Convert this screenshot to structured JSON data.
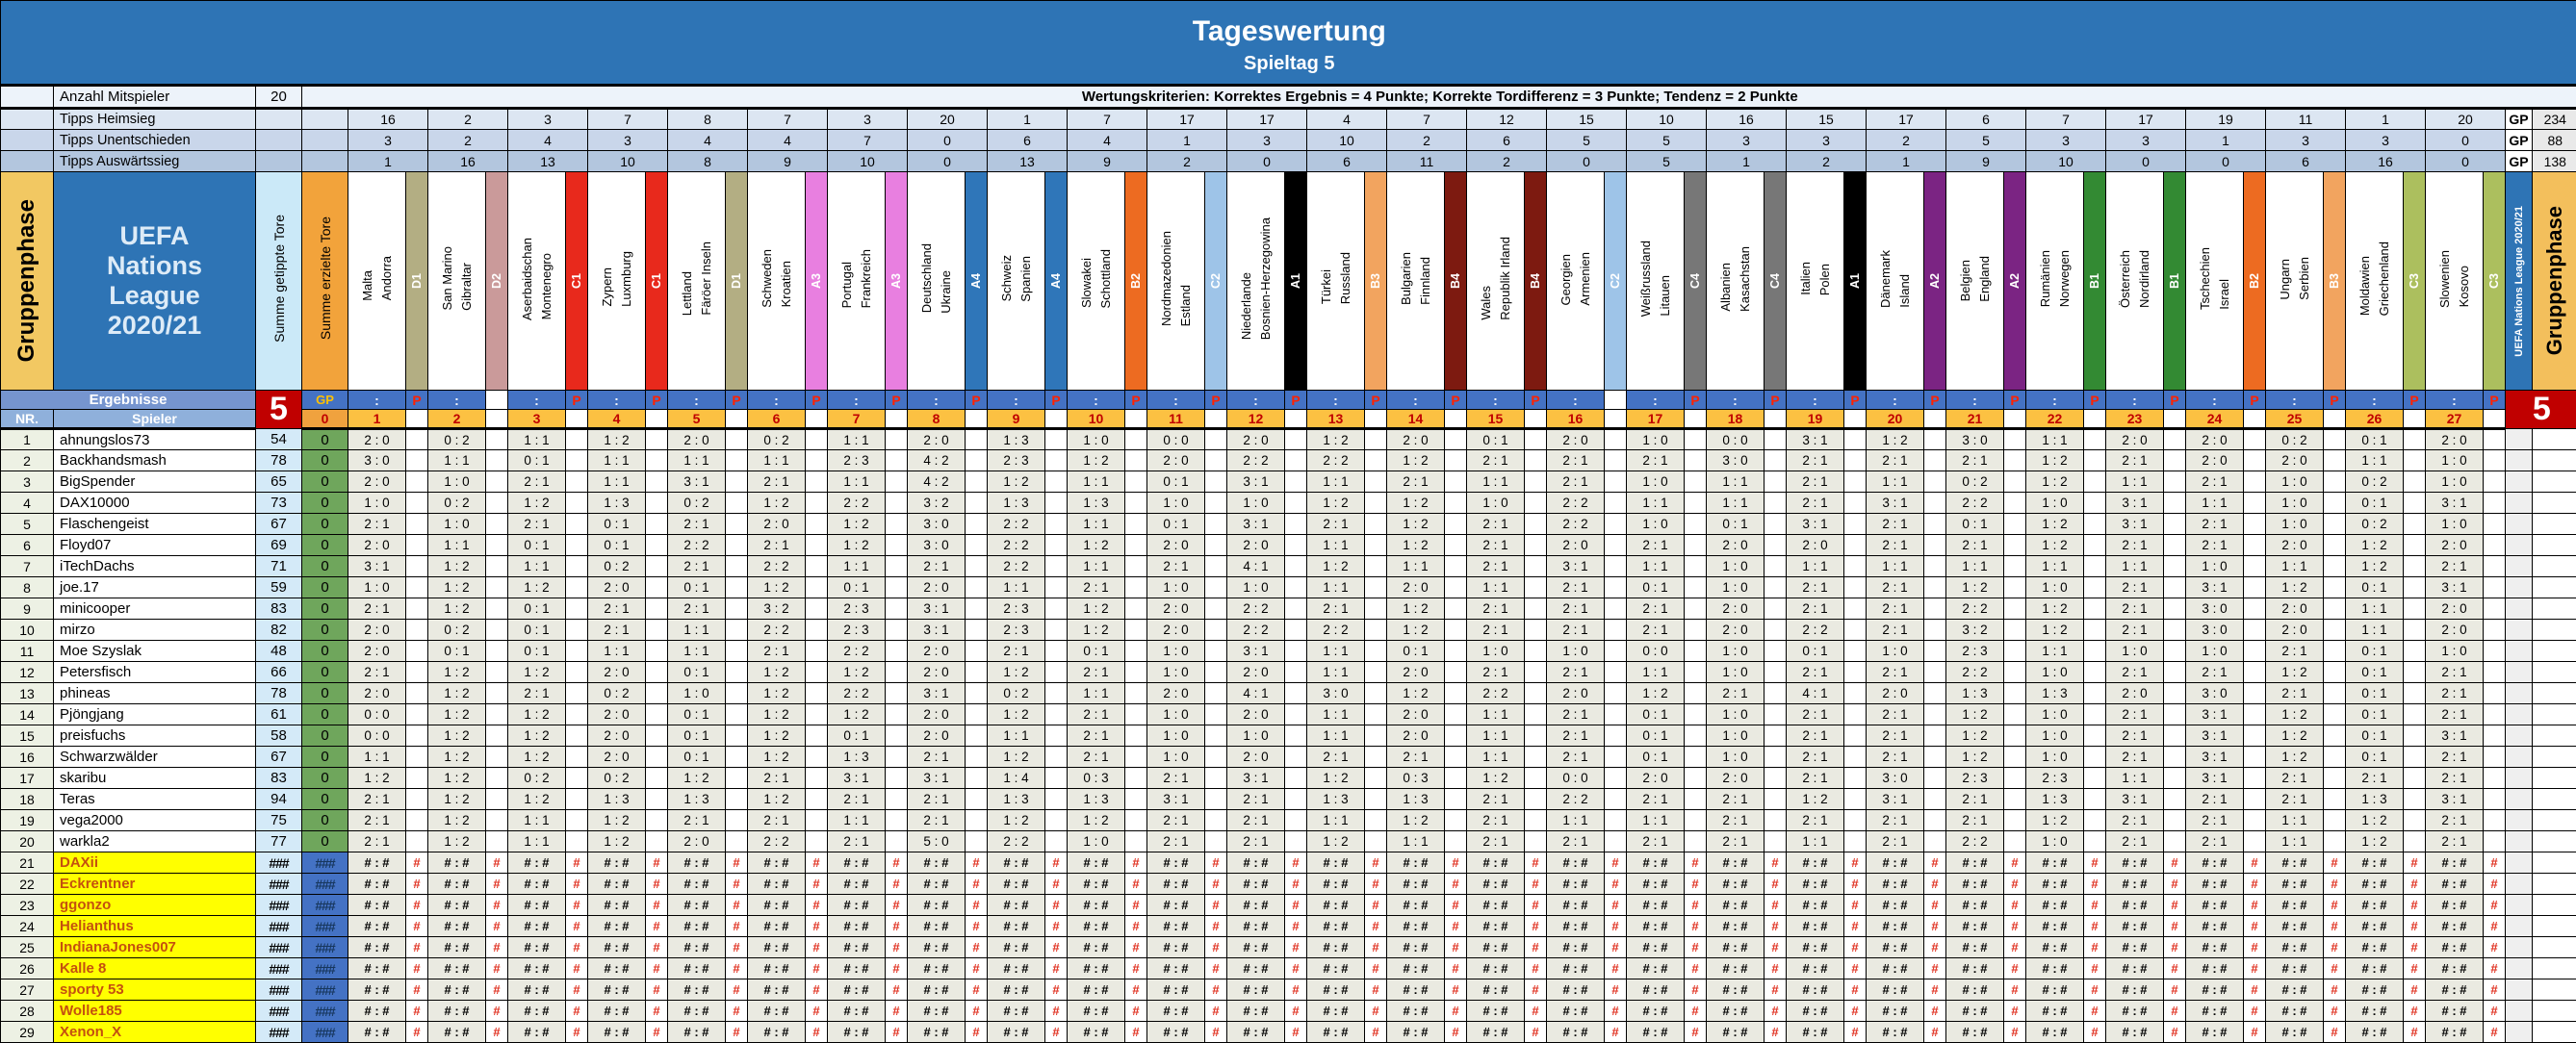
{
  "banner": {
    "title": "Tageswertung",
    "subtitle": "Spieltag 5"
  },
  "info": {
    "anzahl_label": "Anzahl Mitspieler",
    "anzahl_value": "20",
    "kriterien": "Wertungskriterien: Korrektes Ergebnis = 4 Punkte; Korrekte Tordifferenz = 3 Punkte; Tendenz = 2 Punkte"
  },
  "labels": {
    "gruppenphase_left": "Gruppenphase",
    "uefa_box_lines": [
      "UEFA",
      "Nations",
      "League",
      "2020/21"
    ],
    "summe_getippte": "Summe getippte Tore",
    "summe_erzielte": "Summe erzielte Tore",
    "uefa_column": "UEFA Nations League 2020/21",
    "gruppenphase_right": "Gruppenphase",
    "ergebnisse": "Ergebnisse",
    "spieler": "Spieler",
    "nr": "NR.",
    "gp": "GP",
    "spieltag_number": "5",
    "zero": "0",
    "colon": ":",
    "p": "P"
  },
  "group_colors": {
    "D1": "#B3AE83",
    "D2": "#CA9A9A",
    "C1": "#E8291C",
    "A3": "#E87FE0",
    "A4": "#2F76B9",
    "B2": "#ED6B21",
    "C2": "#9EC4E8",
    "A1": "#000000",
    "B3": "#F2A45F",
    "B4": "#7D1A10",
    "C4": "#777777",
    "A2": "#7B2483",
    "B1": "#338A33",
    "C3": "#ACBF5E"
  },
  "matches": [
    {
      "nr": 1,
      "home": "Malta",
      "away": "Andorra",
      "group": "D1",
      "p": true
    },
    {
      "nr": 2,
      "home": "San Marino",
      "away": "Gibraltar",
      "group": "D2",
      "p": false
    },
    {
      "nr": 3,
      "home": "Aserbaidschan",
      "away": "Montenegro",
      "group": "C1",
      "p": true
    },
    {
      "nr": 4,
      "home": "Zypern",
      "away": "Luxmburg",
      "group": "C1",
      "p": true
    },
    {
      "nr": 5,
      "home": "Lettland",
      "away": "Färöer Inseln",
      "group": "D1",
      "p": true
    },
    {
      "nr": 6,
      "home": "Schweden",
      "away": "Kroatien",
      "group": "A3",
      "p": true
    },
    {
      "nr": 7,
      "home": "Portugal",
      "away": "Frankreich",
      "group": "A3",
      "p": true
    },
    {
      "nr": 8,
      "home": "Deutschland",
      "away": "Ukraine",
      "group": "A4",
      "p": true
    },
    {
      "nr": 9,
      "home": "Schweiz",
      "away": "Spanien",
      "group": "A4",
      "p": true
    },
    {
      "nr": 10,
      "home": "Slowakei",
      "away": "Schottland",
      "group": "B2",
      "p": true
    },
    {
      "nr": 11,
      "home": "Nordmazedonien",
      "away": "Estland",
      "group": "C2",
      "p": true
    },
    {
      "nr": 12,
      "home": "Niederlande",
      "away": "Bosnien-Herzegowina",
      "group": "A1",
      "p": true
    },
    {
      "nr": 13,
      "home": "Türkei",
      "away": "Russland",
      "group": "B3",
      "p": true
    },
    {
      "nr": 14,
      "home": "Bulgarien",
      "away": "Finnland",
      "group": "B4",
      "p": true
    },
    {
      "nr": 15,
      "home": "Wales",
      "away": "Republik Irland",
      "group": "B4",
      "p": true
    },
    {
      "nr": 16,
      "home": "Georgien",
      "away": "Armenien",
      "group": "C2",
      "p": false
    },
    {
      "nr": 17,
      "home": "Weißrussland",
      "away": "Litauen",
      "group": "C4",
      "p": true
    },
    {
      "nr": 18,
      "home": "Albanien",
      "away": "Kasachstan",
      "group": "C4",
      "p": true
    },
    {
      "nr": 19,
      "home": "Italien",
      "away": "Polen",
      "group": "A1",
      "p": true
    },
    {
      "nr": 20,
      "home": "Dänemark",
      "away": "Island",
      "group": "A2",
      "p": true
    },
    {
      "nr": 21,
      "home": "Belgien",
      "away": "England",
      "group": "A2",
      "p": true
    },
    {
      "nr": 22,
      "home": "Rumänien",
      "away": "Norwegen",
      "group": "B1",
      "p": true
    },
    {
      "nr": 23,
      "home": "Österreich",
      "away": "Nordirland",
      "group": "B1",
      "p": true
    },
    {
      "nr": 24,
      "home": "Tschechien",
      "away": "Israel",
      "group": "B2",
      "p": true
    },
    {
      "nr": 25,
      "home": "Ungarn",
      "away": "Serbien",
      "group": "B3",
      "p": true
    },
    {
      "nr": 26,
      "home": "Moldawien",
      "away": "Griechenland",
      "group": "C3",
      "p": true
    },
    {
      "nr": 27,
      "home": "Slowenien",
      "away": "Kosovo",
      "group": "C3",
      "p": true
    }
  ],
  "tipps_rows": [
    {
      "label": "Tipps Heimsieg",
      "bg": "#DCE6F2",
      "values": [
        16,
        2,
        3,
        7,
        8,
        7,
        3,
        20,
        1,
        7,
        17,
        17,
        4,
        7,
        12,
        15,
        10,
        16,
        15,
        17,
        6,
        7,
        17,
        19,
        11,
        1,
        20
      ],
      "gp_label": "GP",
      "gp_value": "234"
    },
    {
      "label": "Tipps Unentschieden",
      "bg": "#C9D6EA",
      "values": [
        3,
        2,
        4,
        3,
        4,
        4,
        7,
        0,
        6,
        4,
        1,
        3,
        10,
        2,
        6,
        5,
        5,
        3,
        3,
        2,
        5,
        3,
        3,
        1,
        3,
        3,
        0
      ],
      "gp_label": "GP",
      "gp_value": "88"
    },
    {
      "label": "Tipps Auswärtssieg",
      "bg": "#B3C6DE",
      "values": [
        1,
        16,
        13,
        10,
        8,
        9,
        10,
        0,
        13,
        9,
        2,
        0,
        6,
        11,
        2,
        0,
        5,
        1,
        2,
        1,
        9,
        10,
        0,
        0,
        6,
        16,
        0
      ],
      "gp_label": "GP",
      "gp_value": "138"
    }
  ],
  "players": [
    {
      "nr": 1,
      "name": "ahnungslos73",
      "getippt": "54",
      "erzielt": "0",
      "tips": [
        "2:0",
        "0:2",
        "1:1",
        "1:2",
        "2:0",
        "0:2",
        "1:1",
        "2:0",
        "1:3",
        "1:0",
        "0:0",
        "2:0",
        "1:2",
        "2:0",
        "0:1",
        "2:0",
        "1:0",
        "0:0",
        "3:1",
        "1:2",
        "3:0",
        "1:1",
        "2:0",
        "2:0",
        "0:2",
        "0:1",
        "2:0"
      ]
    },
    {
      "nr": 2,
      "name": "Backhandsmash",
      "getippt": "78",
      "erzielt": "0",
      "tips": [
        "3:0",
        "1:1",
        "0:1",
        "1:1",
        "1:1",
        "1:1",
        "2:3",
        "4:2",
        "2:3",
        "1:2",
        "2:0",
        "2:2",
        "2:2",
        "1:2",
        "2:1",
        "2:1",
        "2:1",
        "3:0",
        "2:1",
        "2:1",
        "2:1",
        "1:2",
        "2:1",
        "2:0",
        "2:0",
        "1:1",
        "1:0"
      ]
    },
    {
      "nr": 3,
      "name": "BigSpender",
      "getippt": "65",
      "erzielt": "0",
      "tips": [
        "2:0",
        "1:0",
        "2:1",
        "1:1",
        "3:1",
        "2:1",
        "1:1",
        "4:2",
        "1:2",
        "1:1",
        "0:1",
        "3:1",
        "1:1",
        "2:1",
        "1:1",
        "2:1",
        "1:0",
        "1:1",
        "2:1",
        "1:1",
        "0:2",
        "1:2",
        "1:1",
        "2:1",
        "1:0",
        "0:2",
        "1:0"
      ]
    },
    {
      "nr": 4,
      "name": "DAX10000",
      "getippt": "73",
      "erzielt": "0",
      "tips": [
        "1:0",
        "0:2",
        "1:2",
        "1:3",
        "0:2",
        "1:2",
        "2:2",
        "3:2",
        "1:3",
        "1:3",
        "1:0",
        "1:0",
        "1:2",
        "1:2",
        "1:0",
        "2:2",
        "1:1",
        "1:1",
        "2:1",
        "3:1",
        "2:2",
        "1:0",
        "3:1",
        "1:1",
        "1:0",
        "0:1",
        "3:1"
      ]
    },
    {
      "nr": 5,
      "name": "Flaschengeist",
      "getippt": "67",
      "erzielt": "0",
      "tips": [
        "2:1",
        "1:0",
        "2:1",
        "0:1",
        "2:1",
        "2:0",
        "1:2",
        "3:0",
        "2:2",
        "1:1",
        "0:1",
        "3:1",
        "2:1",
        "1:2",
        "2:1",
        "2:2",
        "1:0",
        "0:1",
        "3:1",
        "2:1",
        "0:1",
        "1:2",
        "3:1",
        "2:1",
        "1:0",
        "0:2",
        "1:0"
      ]
    },
    {
      "nr": 6,
      "name": "Floyd07",
      "getippt": "69",
      "erzielt": "0",
      "tips": [
        "2:0",
        "1:1",
        "0:1",
        "0:1",
        "2:2",
        "2:1",
        "1:2",
        "3:0",
        "2:2",
        "1:2",
        "2:0",
        "2:0",
        "1:1",
        "1:2",
        "2:1",
        "2:0",
        "2:1",
        "2:0",
        "2:0",
        "2:1",
        "2:1",
        "1:2",
        "2:1",
        "2:1",
        "2:0",
        "1:2",
        "2:0"
      ]
    },
    {
      "nr": 7,
      "name": "iTechDachs",
      "getippt": "71",
      "erzielt": "0",
      "tips": [
        "3:1",
        "1:2",
        "1:1",
        "0:2",
        "2:1",
        "2:2",
        "1:1",
        "2:1",
        "2:2",
        "1:1",
        "2:1",
        "4:1",
        "1:2",
        "1:1",
        "2:1",
        "3:1",
        "1:1",
        "1:0",
        "1:1",
        "1:1",
        "1:1",
        "1:1",
        "1:1",
        "1:0",
        "1:1",
        "1:2",
        "2:1"
      ]
    },
    {
      "nr": 8,
      "name": "joe.17",
      "getippt": "59",
      "erzielt": "0",
      "tips": [
        "1:0",
        "1:2",
        "1:2",
        "2:0",
        "0:1",
        "1:2",
        "0:1",
        "2:0",
        "1:1",
        "2:1",
        "1:0",
        "1:0",
        "1:1",
        "2:0",
        "1:1",
        "2:1",
        "0:1",
        "1:0",
        "2:1",
        "2:1",
        "1:2",
        "1:0",
        "2:1",
        "3:1",
        "1:2",
        "0:1",
        "3:1"
      ]
    },
    {
      "nr": 9,
      "name": "minicooper",
      "getippt": "83",
      "erzielt": "0",
      "tips": [
        "2:1",
        "1:2",
        "0:1",
        "2:1",
        "2:1",
        "3:2",
        "2:3",
        "3:1",
        "2:3",
        "1:2",
        "2:0",
        "2:2",
        "2:1",
        "1:2",
        "2:1",
        "2:1",
        "2:1",
        "2:0",
        "2:1",
        "2:1",
        "2:2",
        "1:2",
        "2:1",
        "3:0",
        "2:0",
        "1:1",
        "2:0"
      ]
    },
    {
      "nr": 10,
      "name": "mirzo",
      "getippt": "82",
      "erzielt": "0",
      "tips": [
        "2:0",
        "0:2",
        "0:1",
        "2:1",
        "1:1",
        "2:2",
        "2:3",
        "3:1",
        "2:3",
        "1:2",
        "2:0",
        "2:2",
        "2:2",
        "1:2",
        "2:1",
        "2:1",
        "2:1",
        "2:0",
        "2:2",
        "2:1",
        "3:2",
        "1:2",
        "2:1",
        "3:0",
        "2:0",
        "1:1",
        "2:0"
      ]
    },
    {
      "nr": 11,
      "name": "Moe Szyslak",
      "getippt": "48",
      "erzielt": "0",
      "tips": [
        "2:0",
        "0:1",
        "0:1",
        "1:1",
        "1:1",
        "2:1",
        "2:2",
        "2:0",
        "2:1",
        "0:1",
        "1:0",
        "3:1",
        "1:1",
        "0:1",
        "1:0",
        "1:0",
        "0:0",
        "1:0",
        "0:1",
        "1:0",
        "2:3",
        "1:1",
        "1:0",
        "1:0",
        "2:1",
        "0:1",
        "1:0"
      ]
    },
    {
      "nr": 12,
      "name": "Petersfisch",
      "getippt": "66",
      "erzielt": "0",
      "tips": [
        "2:1",
        "1:2",
        "1:2",
        "2:0",
        "0:1",
        "1:2",
        "1:2",
        "2:0",
        "1:2",
        "2:1",
        "1:0",
        "2:0",
        "1:1",
        "2:0",
        "2:1",
        "2:1",
        "1:1",
        "1:0",
        "2:1",
        "2:1",
        "2:2",
        "1:0",
        "2:1",
        "2:1",
        "1:2",
        "0:1",
        "2:1"
      ]
    },
    {
      "nr": 13,
      "name": "phineas",
      "getippt": "78",
      "erzielt": "0",
      "tips": [
        "2:0",
        "1:2",
        "2:1",
        "0:2",
        "1:0",
        "1:2",
        "2:2",
        "3:1",
        "0:2",
        "1:1",
        "2:0",
        "4:1",
        "3:0",
        "1:2",
        "2:2",
        "2:0",
        "1:2",
        "2:1",
        "4:1",
        "2:0",
        "1:3",
        "1:3",
        "2:0",
        "3:0",
        "2:1",
        "0:1",
        "2:1"
      ]
    },
    {
      "nr": 14,
      "name": "Pjöngjang",
      "getippt": "61",
      "erzielt": "0",
      "tips": [
        "0:0",
        "1:2",
        "1:2",
        "2:0",
        "0:1",
        "1:2",
        "1:2",
        "2:0",
        "1:2",
        "2:1",
        "1:0",
        "2:0",
        "1:1",
        "2:0",
        "1:1",
        "2:1",
        "0:1",
        "1:0",
        "2:1",
        "2:1",
        "1:2",
        "1:0",
        "2:1",
        "3:1",
        "1:2",
        "0:1",
        "2:1"
      ]
    },
    {
      "nr": 15,
      "name": "preisfuchs",
      "getippt": "58",
      "erzielt": "0",
      "tips": [
        "0:0",
        "1:2",
        "1:2",
        "2:0",
        "0:1",
        "1:2",
        "0:1",
        "2:0",
        "1:1",
        "2:1",
        "1:0",
        "1:0",
        "1:1",
        "2:0",
        "1:1",
        "2:1",
        "0:1",
        "1:0",
        "2:1",
        "2:1",
        "1:2",
        "1:0",
        "2:1",
        "3:1",
        "1:2",
        "0:1",
        "3:1"
      ]
    },
    {
      "nr": 16,
      "name": "Schwarzwälder",
      "getippt": "67",
      "erzielt": "0",
      "tips": [
        "1:1",
        "1:2",
        "1:2",
        "2:0",
        "0:1",
        "1:2",
        "1:3",
        "2:1",
        "1:2",
        "2:1",
        "1:0",
        "2:0",
        "2:1",
        "2:1",
        "1:1",
        "2:1",
        "0:1",
        "1:0",
        "2:1",
        "2:1",
        "1:2",
        "1:0",
        "2:1",
        "3:1",
        "1:2",
        "0:1",
        "2:1"
      ]
    },
    {
      "nr": 17,
      "name": "skaribu",
      "getippt": "83",
      "erzielt": "0",
      "tips": [
        "1:2",
        "1:2",
        "0:2",
        "0:2",
        "1:2",
        "2:1",
        "3:1",
        "3:1",
        "1:4",
        "0:3",
        "2:1",
        "3:1",
        "1:2",
        "0:3",
        "1:2",
        "0:0",
        "2:0",
        "2:0",
        "2:1",
        "3:0",
        "2:3",
        "2:3",
        "1:1",
        "3:1",
        "2:1",
        "2:1",
        "2:1"
      ]
    },
    {
      "nr": 18,
      "name": "Teras",
      "getippt": "94",
      "erzielt": "0",
      "tips": [
        "2:1",
        "1:2",
        "1:2",
        "1:3",
        "1:3",
        "1:2",
        "2:1",
        "2:1",
        "1:3",
        "1:3",
        "3:1",
        "2:1",
        "1:3",
        "1:3",
        "2:1",
        "2:2",
        "2:1",
        "2:1",
        "1:2",
        "3:1",
        "2:1",
        "1:3",
        "3:1",
        "2:1",
        "2:1",
        "1:3",
        "3:1"
      ]
    },
    {
      "nr": 19,
      "name": "vega2000",
      "getippt": "75",
      "erzielt": "0",
      "tips": [
        "2:1",
        "1:2",
        "1:1",
        "1:2",
        "2:1",
        "2:1",
        "1:1",
        "2:1",
        "1:2",
        "1:2",
        "2:1",
        "2:1",
        "1:1",
        "1:2",
        "2:1",
        "1:1",
        "1:1",
        "2:1",
        "2:1",
        "2:1",
        "2:1",
        "1:2",
        "2:1",
        "2:1",
        "1:1",
        "1:2",
        "2:1"
      ]
    },
    {
      "nr": 20,
      "name": "warkla2",
      "getippt": "77",
      "erzielt": "0",
      "tips": [
        "2:1",
        "1:2",
        "1:1",
        "1:2",
        "2:0",
        "2:2",
        "2:1",
        "5:0",
        "2:2",
        "1:0",
        "2:1",
        "2:1",
        "1:2",
        "1:1",
        "2:1",
        "2:1",
        "2:1",
        "2:1",
        "1:1",
        "2:1",
        "2:2",
        "1:0",
        "2:1",
        "2:1",
        "1:1",
        "1:2",
        "2:1"
      ]
    }
  ],
  "late_players": [
    {
      "nr": 21,
      "name": "DAXii"
    },
    {
      "nr": 22,
      "name": "Eckrentner"
    },
    {
      "nr": 23,
      "name": "ggonzo"
    },
    {
      "nr": 24,
      "name": "Helianthus"
    },
    {
      "nr": 25,
      "name": "IndianaJones007"
    },
    {
      "nr": 26,
      "name": "Kalle 8"
    },
    {
      "nr": 27,
      "name": "sporty 53"
    },
    {
      "nr": 28,
      "name": "Wolle185"
    },
    {
      "nr": 29,
      "name": "Xenon_X"
    }
  ],
  "late_cells": {
    "summe": "###",
    "score": "# : #",
    "p": "#"
  }
}
